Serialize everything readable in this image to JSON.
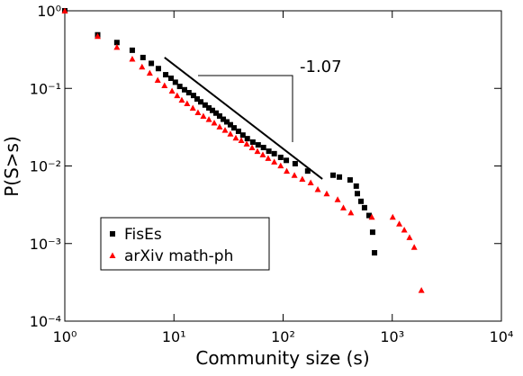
{
  "chart_data": {
    "type": "scatter",
    "x_label": "Community size (s)",
    "y_label": "P(S>s)",
    "log_x": true,
    "log_y": true,
    "xlim": [
      1,
      10000
    ],
    "ylim": [
      0.0001,
      1
    ],
    "xticks": [
      {
        "value": 1,
        "label": "10⁰"
      },
      {
        "value": 10,
        "label": "10¹"
      },
      {
        "value": 100,
        "label": "10²"
      },
      {
        "value": 1000,
        "label": "10³"
      },
      {
        "value": 10000,
        "label": "10⁴"
      }
    ],
    "yticks": [
      {
        "value": 0.0001,
        "label": "10⁻⁴"
      },
      {
        "value": 0.001,
        "label": "10⁻³"
      },
      {
        "value": 0.01,
        "label": "10⁻²"
      },
      {
        "value": 0.1,
        "label": "10⁻¹"
      },
      {
        "value": 1,
        "label": "10⁰"
      }
    ],
    "legend": "lower left",
    "series": [
      {
        "name": "FisEs",
        "color": "#000000",
        "marker": "square",
        "x": [
          1,
          2,
          3,
          4.15,
          5.2,
          6.2,
          7.2,
          8.4,
          9.4,
          10.3,
          11.3,
          12.5,
          13.7,
          15.1,
          16.3,
          17.6,
          19.3,
          20.9,
          22.5,
          24.3,
          26.2,
          28.3,
          30.5,
          32.9,
          35.5,
          39,
          42.8,
          47,
          52.8,
          59.1,
          66.1,
          74,
          83,
          95,
          107,
          129,
          168,
          287,
          328,
          411,
          468,
          479,
          517,
          557,
          613,
          661,
          688
        ],
        "values": [
          1,
          0.49,
          0.39,
          0.31,
          0.25,
          0.21,
          0.18,
          0.15,
          0.135,
          0.12,
          0.106,
          0.096,
          0.088,
          0.081,
          0.073,
          0.067,
          0.061,
          0.056,
          0.052,
          0.048,
          0.044,
          0.04,
          0.037,
          0.034,
          0.031,
          0.028,
          0.025,
          0.0225,
          0.0203,
          0.0187,
          0.0173,
          0.0155,
          0.0144,
          0.0129,
          0.0118,
          0.0107,
          0.0086,
          0.0076,
          0.0072,
          0.0066,
          0.0055,
          0.0044,
          0.0035,
          0.0029,
          0.0023,
          0.0014,
          0.00076
        ]
      },
      {
        "name": "arXiv math-ph",
        "color": "#ff0000",
        "marker": "triangle",
        "x": [
          1,
          2,
          3,
          4.15,
          5.1,
          6,
          7.1,
          8.2,
          9.6,
          10.7,
          11.8,
          13.2,
          14.9,
          16.6,
          18.6,
          20.9,
          23.4,
          26.2,
          29.4,
          32.9,
          36.9,
          41.4,
          46.4,
          52,
          58.2,
          65.2,
          73,
          83,
          95,
          108,
          127,
          150,
          179,
          208,
          251,
          316,
          357,
          418,
          650,
          1010,
          1160,
          1290,
          1440,
          1590,
          1850
        ],
        "values": [
          1,
          0.47,
          0.34,
          0.24,
          0.19,
          0.158,
          0.128,
          0.109,
          0.093,
          0.081,
          0.071,
          0.064,
          0.056,
          0.049,
          0.044,
          0.04,
          0.036,
          0.032,
          0.029,
          0.026,
          0.023,
          0.0214,
          0.0193,
          0.0173,
          0.0155,
          0.014,
          0.0126,
          0.0113,
          0.0101,
          0.0086,
          0.0076,
          0.0068,
          0.0061,
          0.005,
          0.0044,
          0.0037,
          0.0029,
          0.0025,
          0.0022,
          0.0022,
          0.0018,
          0.0015,
          0.0012,
          0.0009,
          0.00025
        ]
      }
    ],
    "fit_line": {
      "label": "-1.07",
      "x": [
        8.2,
        229
      ],
      "values": [
        0.25,
        0.0068
      ]
    }
  }
}
